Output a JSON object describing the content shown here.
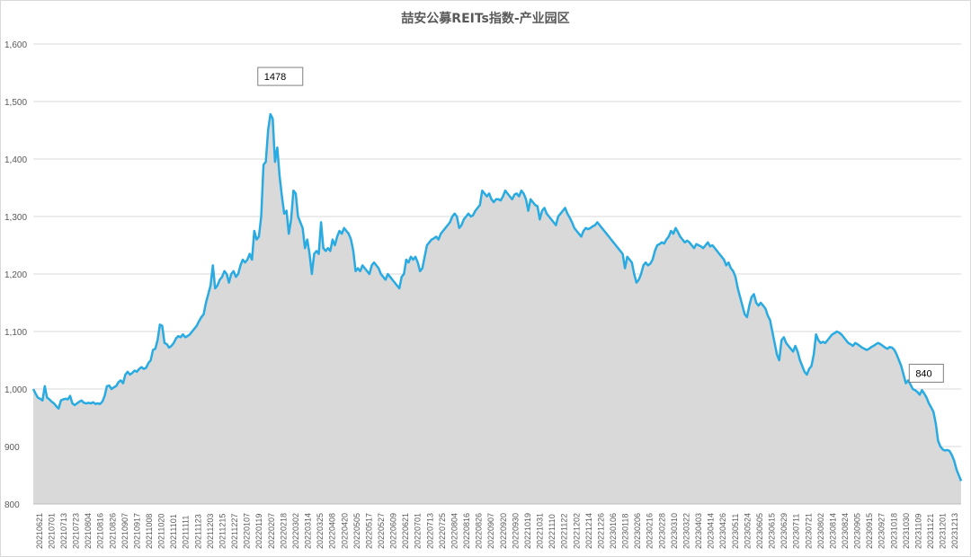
{
  "chart_data": {
    "type": "area",
    "title": "喆安公募REITs指数-产业园区",
    "xlabel": "",
    "ylabel": "",
    "ylim": [
      800,
      1600
    ],
    "yticks": [
      800,
      900,
      1000,
      1100,
      1200,
      1300,
      1400,
      1500,
      1600
    ],
    "ytick_labels": [
      "800",
      "900",
      "1,000",
      "1,100",
      "1,200",
      "1,300",
      "1,400",
      "1,500",
      "1,600"
    ],
    "grid": "horizontal",
    "legend": "none",
    "colors": {
      "line": "#29abe2",
      "fill": "#d9d9d9",
      "grid": "#d9d9d9",
      "axis": "#bfbfbf"
    },
    "x_tick_labels": [
      "20210621",
      "20210701",
      "20210713",
      "20210723",
      "20210804",
      "20210816",
      "20210826",
      "20210907",
      "20210917",
      "20211008",
      "20211020",
      "20211101",
      "20211111",
      "20211123",
      "20211203",
      "20211215",
      "20211227",
      "20220107",
      "20220119",
      "20220207",
      "20220218",
      "20220302",
      "20220314",
      "20220325",
      "20220408",
      "20220420",
      "20220505",
      "20220517",
      "20220527",
      "20220609",
      "20220621",
      "20220701",
      "20220713",
      "20220725",
      "20220804",
      "20220816",
      "20220826",
      "20220907",
      "20220920",
      "20220930",
      "20221019",
      "20221031",
      "20221110",
      "20221122",
      "20221202",
      "20221214",
      "20221226",
      "20230106",
      "20230118",
      "20230206",
      "20230216",
      "20230228",
      "20230310",
      "20230322",
      "20230403",
      "20230414",
      "20230426",
      "20230511",
      "20230524",
      "20230605",
      "20230615",
      "20230629",
      "20230711",
      "20230721",
      "20230802",
      "20230814",
      "20230824",
      "20230905",
      "20230915",
      "20230927",
      "20231018",
      "20231030",
      "20231109",
      "20231121",
      "20231201",
      "20231213"
    ],
    "series": [
      {
        "values": [
          1000,
          992,
          985,
          983,
          980,
          1005,
          985,
          982,
          978,
          975,
          970,
          966,
          980,
          982,
          983,
          982,
          988,
          975,
          972,
          975,
          978,
          980,
          976,
          975,
          976,
          975,
          977,
          974,
          975,
          974,
          978,
          988,
          1005,
          1006,
          1000,
          1003,
          1005,
          1012,
          1015,
          1010,
          1025,
          1030,
          1025,
          1028,
          1032,
          1030,
          1035,
          1038,
          1035,
          1037,
          1045,
          1050,
          1068,
          1070,
          1085,
          1112,
          1110,
          1080,
          1078,
          1072,
          1075,
          1080,
          1088,
          1092,
          1090,
          1095,
          1090,
          1092,
          1095,
          1100,
          1105,
          1110,
          1118,
          1125,
          1130,
          1150,
          1165,
          1180,
          1215,
          1175,
          1180,
          1190,
          1195,
          1205,
          1200,
          1185,
          1200,
          1205,
          1195,
          1200,
          1215,
          1225,
          1220,
          1225,
          1235,
          1225,
          1275,
          1260,
          1265,
          1300,
          1390,
          1395,
          1450,
          1478,
          1470,
          1395,
          1420,
          1370,
          1335,
          1305,
          1310,
          1270,
          1295,
          1345,
          1340,
          1300,
          1290,
          1280,
          1245,
          1260,
          1235,
          1200,
          1235,
          1240,
          1235,
          1290,
          1245,
          1240,
          1245,
          1240,
          1260,
          1250,
          1265,
          1275,
          1270,
          1280,
          1275,
          1270,
          1260,
          1240,
          1205,
          1210,
          1205,
          1215,
          1210,
          1205,
          1200,
          1215,
          1220,
          1215,
          1210,
          1200,
          1195,
          1190,
          1200,
          1195,
          1190,
          1185,
          1180,
          1175,
          1195,
          1200,
          1225,
          1220,
          1230,
          1225,
          1230,
          1220,
          1205,
          1210,
          1230,
          1250,
          1255,
          1260,
          1262,
          1265,
          1260,
          1270,
          1275,
          1280,
          1285,
          1290,
          1300,
          1305,
          1300,
          1280,
          1285,
          1295,
          1300,
          1305,
          1300,
          1302,
          1310,
          1315,
          1320,
          1345,
          1340,
          1335,
          1340,
          1330,
          1325,
          1330,
          1330,
          1328,
          1335,
          1345,
          1340,
          1335,
          1330,
          1338,
          1340,
          1335,
          1345,
          1340,
          1330,
          1310,
          1330,
          1325,
          1320,
          1318,
          1295,
          1310,
          1315,
          1305,
          1300,
          1295,
          1290,
          1285,
          1300,
          1305,
          1310,
          1315,
          1305,
          1298,
          1290,
          1280,
          1275,
          1270,
          1265,
          1275,
          1280,
          1278,
          1280,
          1283,
          1285,
          1290,
          1285,
          1280,
          1275,
          1270,
          1265,
          1260,
          1255,
          1250,
          1245,
          1240,
          1235,
          1210,
          1230,
          1225,
          1220,
          1200,
          1185,
          1190,
          1200,
          1215,
          1220,
          1215,
          1218,
          1225,
          1240,
          1250,
          1252,
          1255,
          1253,
          1260,
          1265,
          1275,
          1270,
          1280,
          1273,
          1265,
          1260,
          1255,
          1258,
          1255,
          1250,
          1245,
          1252,
          1250,
          1248,
          1245,
          1250,
          1255,
          1248,
          1250,
          1245,
          1240,
          1235,
          1230,
          1225,
          1215,
          1220,
          1210,
          1205,
          1195,
          1175,
          1160,
          1145,
          1130,
          1125,
          1145,
          1160,
          1165,
          1150,
          1145,
          1150,
          1145,
          1140,
          1128,
          1120,
          1100,
          1080,
          1060,
          1050,
          1085,
          1090,
          1080,
          1075,
          1070,
          1065,
          1075,
          1065,
          1050,
          1040,
          1030,
          1025,
          1035,
          1040,
          1060,
          1095,
          1085,
          1080,
          1082,
          1080,
          1085,
          1090,
          1095,
          1097,
          1100,
          1098,
          1095,
          1090,
          1085,
          1080,
          1078,
          1075,
          1080,
          1078,
          1075,
          1072,
          1070,
          1068,
          1070,
          1073,
          1075,
          1078,
          1080,
          1078,
          1075,
          1072,
          1070,
          1073,
          1072,
          1068,
          1060,
          1050,
          1040,
          1025,
          1010,
          1015,
          1008,
          1000,
          998,
          995,
          990,
          998,
          992,
          985,
          975,
          968,
          960,
          940,
          910,
          900,
          895,
          893,
          894,
          892,
          885,
          875,
          860,
          850,
          840
        ]
      }
    ],
    "annotations": [
      {
        "label": "1478",
        "x_index": 103,
        "value": 1478
      },
      {
        "label": "840",
        "x_index": 400,
        "value": 840
      }
    ]
  }
}
